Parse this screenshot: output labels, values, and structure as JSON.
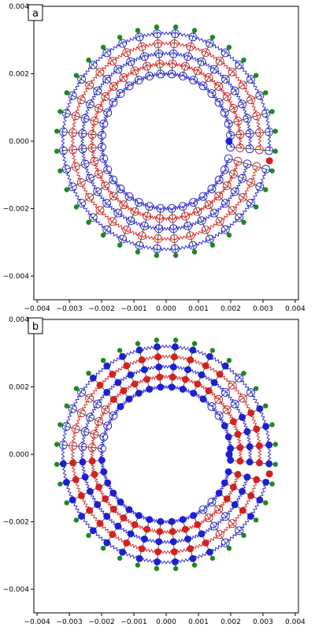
{
  "chart_data": [
    {
      "type": "scatter",
      "panel_label": "a",
      "xlim": [
        -0.0041,
        0.0041
      ],
      "ylim": [
        -0.0047,
        0.004
      ],
      "xticks": [
        -0.004,
        -0.003,
        -0.002,
        -0.001,
        0.0,
        0.001,
        0.002,
        0.003,
        0.004
      ],
      "xtick_labels": [
        "−0.004",
        "−0.003",
        "−0.002",
        "−0.001",
        "0.000",
        "0.001",
        "0.002",
        "0.003",
        "0.004"
      ],
      "yticks": [
        0.004,
        0.002,
        0.0,
        -0.002,
        -0.004
      ],
      "ytick_labels": [
        "0.004",
        "0.002",
        "0.000",
        "−0.002",
        "−0.004"
      ],
      "grid": false,
      "lattice": {
        "radii": [
          0.002,
          0.0023,
          0.0026,
          0.0029,
          0.0032
        ],
        "outer_marker_radius": 0.0034,
        "num_spokes": 36,
        "gap_start_angle_deg": -5,
        "gap_end_angle_deg": -15
      },
      "series": [
        {
          "kind": "ring",
          "ring_indices": [
            0,
            2,
            4
          ],
          "color": "#1f1fd0",
          "marker": "open"
        },
        {
          "kind": "ring",
          "ring_indices": [
            1,
            3
          ],
          "color": "#d42020",
          "marker": "open"
        },
        {
          "kind": "outer",
          "color": "#1a8a1a",
          "marker": "filled"
        }
      ],
      "highlights": [
        {
          "x": 0.00195,
          "y": 0.0,
          "color": "#1f1fd0"
        },
        {
          "x": 0.0032,
          "y": -0.00058,
          "color": "#d42020"
        }
      ]
    },
    {
      "type": "scatter",
      "panel_label": "b",
      "xlim": [
        -0.0041,
        0.0041
      ],
      "ylim": [
        -0.0047,
        0.004
      ],
      "xticks": [
        -0.004,
        -0.003,
        -0.002,
        -0.001,
        0.0,
        0.001,
        0.002,
        0.003,
        0.004
      ],
      "xtick_labels": [
        "−0.004",
        "−0.003",
        "−0.002",
        "−0.001",
        "0.000",
        "0.001",
        "0.002",
        "0.003",
        "0.004"
      ],
      "yticks": [
        0.004,
        0.002,
        0.0,
        -0.002,
        -0.004
      ],
      "ytick_labels": [
        "0.004",
        "0.002",
        "0.000",
        "−0.002",
        "−0.004"
      ],
      "grid": false,
      "lattice": {
        "radii": [
          0.002,
          0.0023,
          0.0026,
          0.0029,
          0.0032
        ],
        "outer_marker_radius": 0.0034,
        "num_spokes": 36,
        "gap_start_angle_deg": -5,
        "gap_end_angle_deg": -15
      },
      "series": [
        {
          "kind": "ring",
          "ring_indices": [
            0,
            2,
            4
          ],
          "color": "#1f1fd0",
          "marker": "mixed"
        },
        {
          "kind": "ring",
          "ring_indices": [
            1,
            3
          ],
          "color": "#d42020",
          "marker": "mixed"
        },
        {
          "kind": "outer",
          "color": "#1a8a1a",
          "marker": "filled"
        }
      ],
      "filled_angle_ranges_deg": [
        [
          -180,
          -60
        ],
        [
          -40,
          30
        ],
        [
          55,
          140
        ]
      ],
      "highlights": [
        {
          "x": 0.00195,
          "y": 0.0,
          "color": "#1f1fd0"
        },
        {
          "x": 0.0032,
          "y": -0.00058,
          "color": "#d42020"
        }
      ]
    }
  ]
}
